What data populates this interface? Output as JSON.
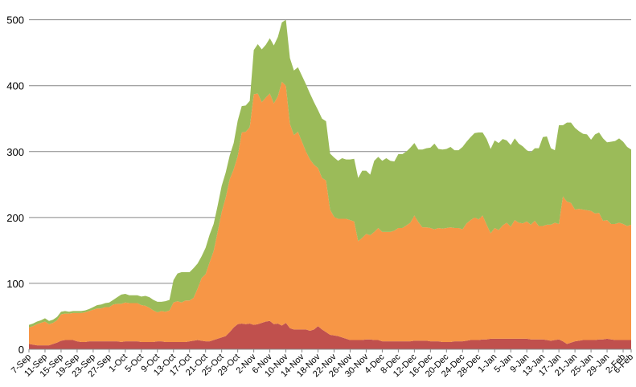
{
  "chart_data": {
    "type": "area",
    "stacked": true,
    "grid": "horizontal",
    "ylim": [
      0,
      530
    ],
    "yticks": [
      0,
      100,
      200,
      300,
      400,
      500
    ],
    "x_tick_labels": [
      "7-Sep",
      "11-Sep",
      "15-Sep",
      "19-Sep",
      "23-Sep",
      "27-Sep",
      "1-Oct",
      "5-Oct",
      "9-Oct",
      "13-Oct",
      "17-Oct",
      "21-Oct",
      "25-Oct",
      "29-Oct",
      "2-Nov",
      "6-Nov",
      "10-Nov",
      "14-Nov",
      "18-Nov",
      "22-Nov",
      "26-Nov",
      "30-Nov",
      "4-Dec",
      "8-Dec",
      "12-Dec",
      "16-Dec",
      "20-Dec",
      "24-Dec",
      "28-Dec",
      "1-Jan",
      "5-Jan",
      "9-Jan",
      "13-Jan",
      "17-Jan",
      "21-Jan",
      "25-Jan",
      "29-Jan",
      "2-Feb",
      "6-Feb"
    ],
    "x_step_days": 4,
    "series": [
      {
        "color": "#c0504d",
        "values": [
          8,
          7,
          6,
          6,
          6,
          6,
          8,
          10,
          13,
          14,
          14,
          14,
          12,
          11,
          11,
          12,
          12,
          12,
          12,
          12,
          12,
          12,
          12,
          11,
          12,
          12,
          12,
          12,
          11,
          11,
          11,
          11,
          12,
          12,
          11,
          11,
          11,
          11,
          11,
          11,
          12,
          13,
          14,
          13,
          12,
          12,
          14,
          16,
          18,
          20,
          26,
          33,
          38,
          39,
          38,
          39,
          37,
          38,
          40,
          42,
          43,
          38,
          39,
          36,
          40,
          32,
          30,
          30,
          30,
          30,
          28,
          30,
          35,
          30,
          26,
          22,
          21,
          20,
          18,
          16,
          14,
          14,
          14,
          14,
          15,
          15,
          14,
          14,
          12,
          12,
          12,
          12,
          12,
          12,
          12,
          12,
          13,
          13,
          13,
          13,
          12,
          12,
          12,
          11,
          11,
          11,
          12,
          12,
          12,
          13,
          14,
          14,
          14,
          15,
          15,
          16,
          16,
          16,
          16,
          16,
          16,
          16,
          16,
          16,
          16,
          15,
          15,
          15,
          15,
          14,
          13,
          14,
          15,
          12,
          8,
          10,
          12,
          13,
          14,
          14,
          14,
          14,
          15,
          15,
          16,
          15,
          14,
          14,
          14,
          14,
          14
        ]
      },
      {
        "color": "#f79646",
        "values": [
          25,
          28,
          32,
          34,
          36,
          32,
          32,
          34,
          40,
          40,
          40,
          41,
          43,
          44,
          45,
          46,
          48,
          50,
          50,
          52,
          52,
          56,
          57,
          58,
          59,
          58,
          58,
          58,
          56,
          55,
          52,
          48,
          44,
          46,
          46,
          48,
          60,
          62,
          60,
          63,
          62,
          65,
          78,
          95,
          102,
          120,
          135,
          162,
          190,
          210,
          232,
          240,
          255,
          290,
          292,
          298,
          350,
          350,
          335,
          340,
          345,
          335,
          345,
          370,
          360,
          310,
          295,
          300,
          285,
          270,
          260,
          250,
          240,
          230,
          230,
          190,
          180,
          178,
          180,
          182,
          182,
          180,
          150,
          155,
          160,
          158,
          164,
          170,
          166,
          166,
          166,
          168,
          172,
          172,
          176,
          180,
          190,
          180,
          172,
          172,
          172,
          170,
          172,
          172,
          173,
          174,
          172,
          172,
          170,
          178,
          182,
          186,
          183,
          188,
          174,
          160,
          168,
          165,
          172,
          176,
          170,
          180,
          176,
          175,
          178,
          174,
          180,
          172,
          172,
          175,
          176,
          178,
          175,
          220,
          216,
          212,
          200,
          200,
          198,
          197,
          196,
          192,
          192,
          180,
          180,
          175,
          176,
          178,
          176,
          173,
          175
        ]
      },
      {
        "color": "#9bbb59",
        "values": [
          4,
          4,
          4,
          4,
          5,
          5,
          5,
          5,
          4,
          4,
          3,
          3,
          3,
          3,
          3,
          3,
          4,
          5,
          6,
          6,
          7,
          7,
          10,
          14,
          13,
          12,
          12,
          12,
          13,
          15,
          16,
          16,
          16,
          14,
          16,
          16,
          34,
          42,
          46,
          43,
          43,
          45,
          38,
          33,
          40,
          42,
          41,
          40,
          40,
          38,
          36,
          40,
          54,
          40,
          40,
          40,
          67,
          75,
          80,
          80,
          84,
          88,
          90,
          90,
          100,
          100,
          98,
          98,
          100,
          102,
          100,
          95,
          88,
          90,
          90,
          85,
          90,
          88,
          92,
          90,
          92,
          95,
          96,
          102,
          96,
          92,
          108,
          108,
          108,
          112,
          108,
          105,
          112,
          112,
          112,
          114,
          110,
          110,
          118,
          120,
          122,
          130,
          120,
          120,
          120,
          122,
          118,
          118,
          125,
          124,
          126,
          128,
          132,
          126,
          130,
          128,
          133,
          132,
          131,
          125,
          124,
          124,
          120,
          117,
          108,
          110,
          110,
          118,
          135,
          134,
          116,
          110,
          150,
          108,
          120,
          122,
          124,
          118,
          115,
          115,
          108,
          120,
          122,
          125,
          118,
          125,
          126,
          128,
          125,
          120,
          114
        ]
      }
    ]
  }
}
